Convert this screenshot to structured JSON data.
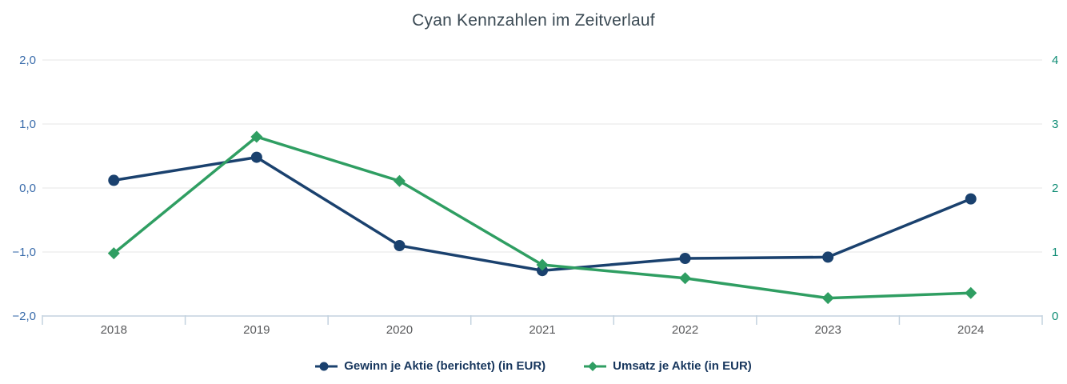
{
  "title": "Cyan Kennzahlen im Zeitverlauf",
  "chart_data": {
    "type": "line",
    "title": "Cyan Kennzahlen im Zeitverlauf",
    "categories": [
      "2018",
      "2019",
      "2020",
      "2021",
      "2022",
      "2023",
      "2024"
    ],
    "series": [
      {
        "name": "Gewinn je Aktie (berichtet) (in EUR)",
        "axis": "left",
        "color": "#1a416e",
        "marker": "circle",
        "values": [
          0.12,
          0.48,
          -0.9,
          -1.29,
          -1.1,
          -1.08,
          -0.17
        ]
      },
      {
        "name": "Umsatz je Aktie (in EUR)",
        "axis": "right",
        "color": "#2f9e62",
        "marker": "diamond",
        "values": [
          0.98,
          2.8,
          2.11,
          0.8,
          0.59,
          0.28,
          0.36
        ]
      }
    ],
    "left_axis": {
      "ticks": [
        "2,0",
        "1,0",
        "0,0",
        "−1,0",
        "−2,0"
      ],
      "max": 2,
      "min": -2,
      "color": "#3a6cab"
    },
    "right_axis": {
      "ticks": [
        "4",
        "3",
        "2",
        "1",
        "0"
      ],
      "max": 4,
      "min": 0,
      "color": "#0e8c74"
    },
    "x_label_color": "#58595b",
    "grid": true,
    "grid_color": "#e6e6e6",
    "axis_color": "#c3d2df",
    "legend_position": "bottom",
    "legend_text_color": "#17365d"
  }
}
